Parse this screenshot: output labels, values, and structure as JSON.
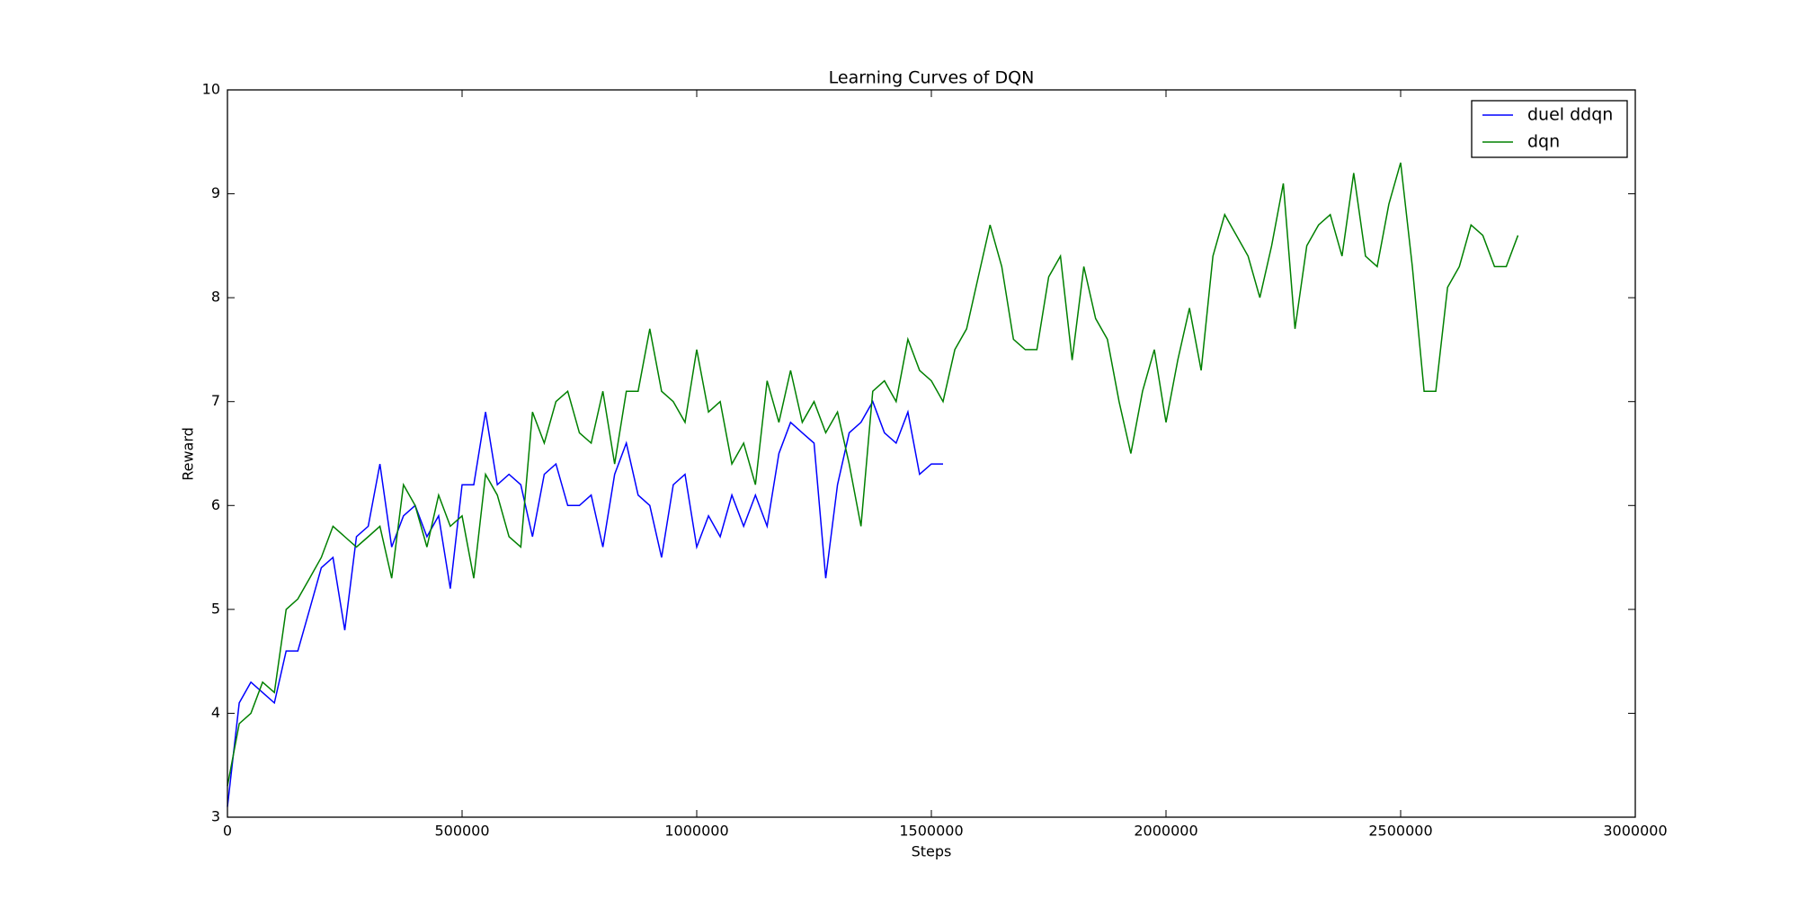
{
  "chart_data": {
    "type": "line",
    "title": "Learning Curves of DQN",
    "x_label": "Steps",
    "y_label": "Reward",
    "x": [
      0,
      25000,
      50000,
      75000,
      100000,
      125000,
      150000,
      175000,
      200000,
      225000,
      250000,
      275000,
      300000,
      325000,
      350000,
      375000,
      400000,
      425000,
      450000,
      475000,
      500000,
      525000,
      550000,
      575000,
      600000,
      625000,
      650000,
      675000,
      700000,
      725000,
      750000,
      775000,
      800000,
      825000,
      850000,
      875000,
      900000,
      925000,
      950000,
      975000,
      1000000,
      1025000,
      1050000,
      1075000,
      1100000,
      1125000,
      1150000,
      1175000,
      1200000,
      1225000,
      1250000,
      1275000,
      1300000,
      1325000,
      1350000,
      1375000,
      1400000,
      1425000,
      1450000,
      1475000,
      1500000,
      1525000,
      1550000,
      1575000,
      1600000,
      1625000,
      1650000,
      1675000,
      1700000,
      1725000,
      1750000,
      1775000,
      1800000,
      1825000,
      1850000,
      1875000,
      1900000,
      1925000,
      1950000,
      1975000,
      2000000,
      2025000,
      2050000,
      2075000,
      2100000,
      2125000,
      2150000,
      2175000,
      2200000,
      2225000,
      2250000,
      2275000,
      2300000,
      2325000,
      2350000,
      2375000,
      2400000,
      2425000,
      2450000,
      2475000,
      2500000,
      2525000,
      2550000,
      2575000,
      2600000,
      2625000,
      2650000,
      2675000,
      2700000,
      2725000,
      2750000
    ],
    "series": [
      {
        "name": "duel ddqn",
        "color": "#0000ff",
        "values": [
          3.1,
          4.1,
          4.3,
          4.2,
          4.1,
          4.6,
          4.6,
          5.0,
          5.4,
          5.5,
          4.8,
          5.7,
          5.8,
          6.4,
          5.6,
          5.9,
          6.0,
          5.7,
          5.9,
          5.2,
          6.2,
          6.2,
          6.9,
          6.2,
          6.3,
          6.2,
          5.7,
          6.3,
          6.4,
          6.0,
          6.0,
          6.1,
          5.6,
          6.3,
          6.6,
          6.1,
          6.0,
          5.5,
          6.2,
          6.3,
          5.6,
          5.9,
          5.7,
          6.1,
          5.8,
          6.1,
          5.8,
          6.5,
          6.8,
          6.7,
          6.6,
          5.3,
          6.2,
          6.7,
          6.8,
          7.0,
          6.7,
          6.6,
          6.9,
          6.3,
          6.4,
          6.4,
          null,
          null,
          null,
          null,
          null,
          null,
          null,
          null,
          null,
          null,
          null,
          null,
          null,
          null,
          null,
          null,
          null,
          null,
          null,
          null,
          null,
          null,
          null,
          null,
          null,
          null,
          null,
          null,
          null,
          null,
          null,
          null,
          null,
          null,
          null,
          null,
          null,
          null,
          null,
          null,
          null,
          null,
          null,
          null,
          null,
          null,
          null,
          null,
          null
        ]
      },
      {
        "name": "dqn",
        "color": "#008000",
        "values": [
          3.3,
          3.9,
          4.0,
          4.3,
          4.2,
          5.0,
          5.1,
          5.3,
          5.5,
          5.8,
          5.7,
          5.6,
          5.7,
          5.8,
          5.3,
          6.2,
          6.0,
          5.6,
          6.1,
          5.8,
          5.9,
          5.3,
          6.3,
          6.1,
          5.7,
          5.6,
          6.9,
          6.6,
          7.0,
          7.1,
          6.7,
          6.6,
          7.1,
          6.4,
          7.1,
          7.1,
          7.7,
          7.1,
          7.0,
          6.8,
          7.5,
          6.9,
          7.0,
          6.4,
          6.6,
          6.2,
          7.2,
          6.8,
          7.3,
          6.8,
          7.0,
          6.7,
          6.9,
          6.4,
          5.8,
          7.1,
          7.2,
          7.0,
          7.6,
          7.3,
          7.2,
          7.0,
          7.5,
          7.7,
          8.2,
          8.7,
          8.3,
          7.6,
          7.5,
          7.5,
          8.2,
          8.4,
          7.4,
          8.3,
          7.8,
          7.6,
          7.0,
          6.5,
          7.1,
          7.5,
          6.8,
          7.4,
          7.9,
          7.3,
          8.4,
          8.8,
          8.6,
          8.4,
          8.0,
          8.5,
          9.1,
          7.7,
          8.5,
          8.7,
          8.8,
          8.4,
          9.2,
          8.4,
          8.3,
          8.9,
          9.3,
          8.3,
          7.1,
          7.1,
          8.1,
          8.3,
          8.7,
          8.6,
          8.3,
          8.3,
          8.6
        ]
      }
    ],
    "xlim": [
      0,
      3000000
    ],
    "ylim": [
      3,
      10
    ],
    "xticks": [
      0,
      500000,
      1000000,
      1500000,
      2000000,
      2500000,
      3000000
    ],
    "yticks": [
      3,
      4,
      5,
      6,
      7,
      8,
      9,
      10
    ],
    "legend": "upper right"
  }
}
